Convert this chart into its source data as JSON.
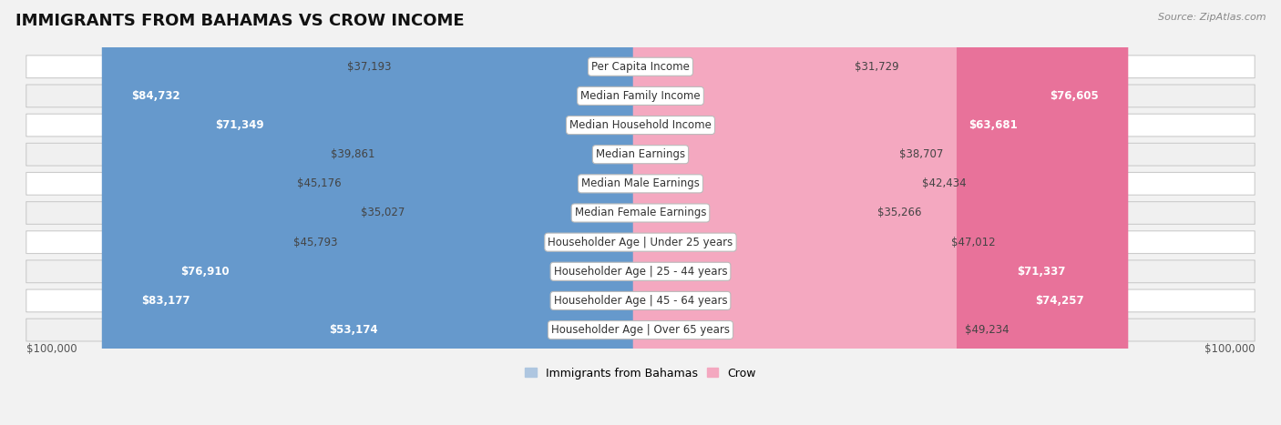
{
  "title": "IMMIGRANTS FROM BAHAMAS VS CROW INCOME",
  "source": "Source: ZipAtlas.com",
  "categories": [
    "Per Capita Income",
    "Median Family Income",
    "Median Household Income",
    "Median Earnings",
    "Median Male Earnings",
    "Median Female Earnings",
    "Householder Age | Under 25 years",
    "Householder Age | 25 - 44 years",
    "Householder Age | 45 - 64 years",
    "Householder Age | Over 65 years"
  ],
  "bahamas_values": [
    37193,
    84732,
    71349,
    39861,
    45176,
    35027,
    45793,
    76910,
    83177,
    53174
  ],
  "crow_values": [
    31729,
    76605,
    63681,
    38707,
    42434,
    35266,
    47012,
    71337,
    74257,
    49234
  ],
  "max_value": 100000,
  "bahamas_color_light": "#aec6e0",
  "bahamas_color_dark": "#6699cc",
  "crow_color_light": "#f4a8c0",
  "crow_color_dark": "#e8729a",
  "bahamas_label": "Immigrants from Bahamas",
  "crow_label": "Crow",
  "row_bg_even": "#ffffff",
  "row_bg_odd": "#f0f0f0",
  "xlabel_left": "$100,000",
  "xlabel_right": "$100,000",
  "title_fontsize": 13,
  "value_fontsize": 8.5,
  "cat_fontsize": 8.5,
  "legend_fontsize": 9,
  "source_fontsize": 8
}
